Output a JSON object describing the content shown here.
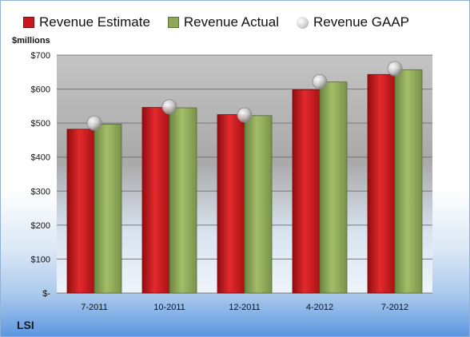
{
  "chart_data": {
    "type": "bar",
    "categories": [
      "7-2011",
      "10-2011",
      "12-2011",
      "4-2012",
      "7-2012"
    ],
    "series": [
      {
        "name": "Revenue Estimate",
        "values": [
          482,
          546,
          525,
          598,
          643
        ],
        "color": "#c8191c",
        "mark": "bar"
      },
      {
        "name": "Revenue Actual",
        "values": [
          497,
          545,
          522,
          621,
          657
        ],
        "color": "#8ea858",
        "mark": "bar"
      },
      {
        "name": "Revenue GAAP",
        "values": [
          500,
          548,
          524,
          622,
          660
        ],
        "color": "#bdbdbd",
        "mark": "marker"
      }
    ],
    "ylim": [
      0,
      700
    ],
    "yticks": [
      0,
      100,
      200,
      300,
      400,
      500,
      600,
      700
    ],
    "ytick_labels": [
      "$-",
      "$100",
      "$200",
      "$300",
      "$400",
      "$500",
      "$600",
      "$700"
    ],
    "ylabel": "$millions",
    "legend": "top",
    "grid": true
  },
  "company": "LSI"
}
